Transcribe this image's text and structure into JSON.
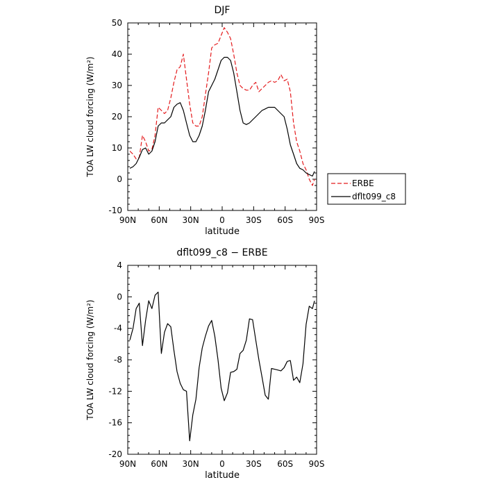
{
  "chart_data": [
    {
      "type": "line",
      "title": "DJF",
      "xlabel": "latitude",
      "ylabel": "TOA LW cloud forcing (W/m²)",
      "xlim": [
        90,
        -90
      ],
      "ylim": [
        -10,
        50
      ],
      "x_ticks": [
        90,
        60,
        30,
        0,
        -30,
        -60,
        -90
      ],
      "x_tick_labels": [
        "90N",
        "60N",
        "30N",
        "0",
        "30S",
        "60S",
        "90S"
      ],
      "y_ticks": [
        -10,
        0,
        10,
        20,
        30,
        40,
        50
      ],
      "y_tick_labels": [
        "-10",
        "0",
        "10",
        "20",
        "30",
        "40",
        "50"
      ],
      "legend_position": "right",
      "series": [
        {
          "name": "ERBE",
          "color": "#e41a1c",
          "dash": "dashed",
          "x": [
            88,
            85,
            82,
            79,
            76,
            73,
            70,
            67,
            64,
            61,
            58,
            55,
            52,
            49,
            46,
            43,
            40,
            37,
            34,
            31,
            28,
            25,
            22,
            19,
            16,
            13,
            10,
            7,
            4,
            1,
            -2,
            -5,
            -8,
            -11,
            -14,
            -17,
            -20,
            -23,
            -26,
            -29,
            -32,
            -35,
            -38,
            -41,
            -44,
            -47,
            -50,
            -53,
            -56,
            -59,
            -62,
            -65,
            -68,
            -71,
            -74,
            -77,
            -80,
            -83,
            -86,
            -88
          ],
          "values": [
            9,
            8,
            6.5,
            7,
            14,
            12,
            9,
            9.5,
            14,
            23,
            22,
            21,
            22,
            26,
            31,
            35,
            36,
            40,
            32,
            24,
            18,
            17,
            17,
            20,
            27,
            34,
            42,
            43,
            43.5,
            46,
            48.5,
            47,
            45,
            40,
            34,
            30,
            29,
            28.5,
            28.5,
            30,
            31,
            28,
            29,
            30,
            31,
            31.5,
            31,
            31.5,
            33.5,
            31.5,
            32,
            28,
            18,
            12,
            9,
            5,
            3,
            0,
            -2,
            0
          ]
        },
        {
          "name": "dflt099_c8",
          "color": "#000000",
          "dash": "solid",
          "x": [
            88,
            85,
            82,
            79,
            76,
            73,
            70,
            67,
            64,
            61,
            58,
            55,
            52,
            49,
            46,
            43,
            40,
            37,
            34,
            31,
            28,
            25,
            22,
            19,
            16,
            13,
            10,
            7,
            4,
            1,
            -2,
            -5,
            -8,
            -11,
            -14,
            -17,
            -20,
            -23,
            -26,
            -29,
            -32,
            -35,
            -38,
            -41,
            -44,
            -47,
            -50,
            -53,
            -56,
            -59,
            -62,
            -65,
            -68,
            -71,
            -74,
            -77,
            -80,
            -83,
            -86,
            -88
          ],
          "values": [
            3.5,
            4,
            5,
            7,
            9.5,
            10,
            8,
            9,
            12,
            17,
            18,
            18,
            19,
            20,
            23,
            24,
            24.5,
            22,
            18,
            14,
            12,
            12,
            14,
            17,
            22,
            28,
            30,
            32,
            35,
            38,
            39,
            39,
            38,
            34,
            28,
            22,
            18,
            17.5,
            18,
            19,
            20,
            21,
            22,
            22.5,
            23,
            23,
            23,
            22,
            21,
            20,
            16,
            11,
            8,
            5,
            3.5,
            3,
            2,
            1.5,
            1,
            2.5
          ]
        }
      ]
    },
    {
      "type": "line",
      "title": "dflt099_c8 − ERBE",
      "xlabel": "latitude",
      "ylabel": "TOA LW cloud forcing (W/m²)",
      "xlim": [
        90,
        -90
      ],
      "ylim": [
        -20,
        4
      ],
      "x_ticks": [
        90,
        60,
        30,
        0,
        -30,
        -60,
        -90
      ],
      "x_tick_labels": [
        "90N",
        "60N",
        "30N",
        "0",
        "30S",
        "60S",
        "90S"
      ],
      "y_ticks": [
        -20,
        -16,
        -12,
        -8,
        -4,
        0,
        4
      ],
      "y_tick_labels": [
        "-20",
        "-16",
        "-12",
        "-8",
        "-4",
        "0",
        "4"
      ],
      "series": [
        {
          "color": "#000000",
          "dash": "solid",
          "x": [
            88,
            85,
            82,
            79,
            76,
            73,
            70,
            67,
            64,
            61,
            58,
            55,
            52,
            49,
            46,
            43,
            40,
            37,
            34,
            31,
            28,
            25,
            22,
            19,
            16,
            13,
            10,
            7,
            4,
            1,
            -2,
            -5,
            -8,
            -11,
            -14,
            -17,
            -20,
            -23,
            -26,
            -29,
            -32,
            -35,
            -38,
            -41,
            -44,
            -47,
            -50,
            -53,
            -56,
            -59,
            -62,
            -65,
            -68,
            -71,
            -74,
            -77,
            -80,
            -83,
            -86,
            -88
          ],
          "values": [
            -5.5,
            -4,
            -1.5,
            -0.8,
            -6.2,
            -3,
            -0.5,
            -1.5,
            0.2,
            0.6,
            -7.2,
            -4.5,
            -3.4,
            -3.8,
            -6.8,
            -9.5,
            -11,
            -11.8,
            -12,
            -18.3,
            -15,
            -13,
            -9,
            -6.5,
            -5,
            -3.7,
            -3,
            -5,
            -8,
            -11.6,
            -13.2,
            -12.2,
            -9.6,
            -9.5,
            -9.2,
            -7.2,
            -6.8,
            -5.5,
            -2.8,
            -2.9,
            -5.5,
            -8,
            -10.2,
            -12.5,
            -13,
            -9.1,
            -9.2,
            -9.3,
            -9.4,
            -9,
            -8.2,
            -8.1,
            -10.6,
            -10.2,
            -10.9,
            -8.5,
            -3.5,
            -1.2,
            -1.5,
            -0.5
          ]
        }
      ]
    }
  ]
}
